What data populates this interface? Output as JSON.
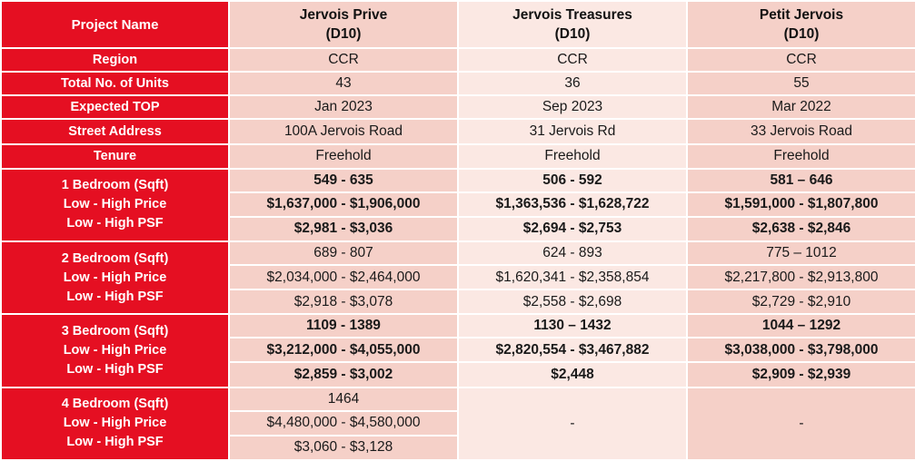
{
  "header": {
    "label": "Project Name",
    "projects": [
      {
        "name": "Jervois Prive",
        "district": "(D10)"
      },
      {
        "name": "Jervois Treasures",
        "district": "(D10)"
      },
      {
        "name": "Petit Jervois",
        "district": "(D10)"
      }
    ]
  },
  "simple_rows": [
    {
      "label": "Region",
      "values": [
        "CCR",
        "CCR",
        "CCR"
      ]
    },
    {
      "label": "Total No. of Units",
      "values": [
        "43",
        "36",
        "55"
      ]
    },
    {
      "label": "Expected TOP",
      "values": [
        "Jan 2023",
        "Sep 2023",
        "Mar 2022"
      ]
    },
    {
      "label": "Street Address",
      "values": [
        "100A Jervois Road",
        "31 Jervois Rd",
        "33 Jervois Road"
      ]
    },
    {
      "label": "Tenure",
      "values": [
        "Freehold",
        "Freehold",
        "Freehold"
      ]
    }
  ],
  "unit_groups": [
    {
      "labels": [
        "1 Bedroom (Sqft)",
        "Low - High Price",
        "Low - High PSF"
      ],
      "bold": true,
      "sqft": [
        "549 - 635",
        "506 - 592",
        "581 – 646"
      ],
      "price": [
        "$1,637,000 - $1,906,000",
        "$1,363,536 - $1,628,722",
        "$1,591,000 - $1,807,800"
      ],
      "psf": [
        "$2,981 - $3,036",
        "$2,694 - $2,753",
        "$2,638 - $2,846"
      ]
    },
    {
      "labels": [
        "2 Bedroom (Sqft)",
        "Low - High Price",
        "Low - High PSF"
      ],
      "bold": false,
      "sqft": [
        "689 - 807",
        "624 - 893",
        "775 – 1012"
      ],
      "price": [
        "$2,034,000 - $2,464,000",
        "$1,620,341 - $2,358,854",
        "$2,217,800 - $2,913,800"
      ],
      "psf": [
        "$2,918 - $3,078",
        "$2,558 - $2,698",
        "$2,729 - $2,910"
      ]
    },
    {
      "labels": [
        "3 Bedroom (Sqft)",
        "Low - High Price",
        "Low - High PSF"
      ],
      "bold": true,
      "sqft": [
        "1109 - 1389",
        "1130 – 1432",
        "1044 – 1292"
      ],
      "price": [
        "$3,212,000 - $4,055,000",
        "$2,820,554 - $3,467,882",
        "$3,038,000 - $3,798,000"
      ],
      "psf": [
        "$2,859 - $3,002",
        "$2,448",
        "$2,909 - $2,939"
      ]
    },
    {
      "labels": [
        "4 Bedroom (Sqft)",
        "Low - High Price",
        "Low - High PSF"
      ],
      "bold": false,
      "sqft": [
        "1464"
      ],
      "price": [
        "$4,480,000 - $4,580,000"
      ],
      "psf": [
        "$3,060 - $3,128"
      ],
      "na": [
        "-",
        "-"
      ]
    }
  ]
}
